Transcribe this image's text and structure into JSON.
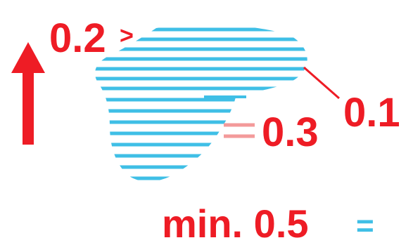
{
  "colors": {
    "annotation": "#ee1c25",
    "hatch": "#3fbfe6",
    "cut": "#f39a9a"
  },
  "icons": {
    "direction": "up-arrow-icon"
  },
  "labels": {
    "top": "0.2",
    "top_marker": ">",
    "right": "0.1",
    "middle": "0.3",
    "bottom": "min. 0.5",
    "bottom_marker": "="
  }
}
